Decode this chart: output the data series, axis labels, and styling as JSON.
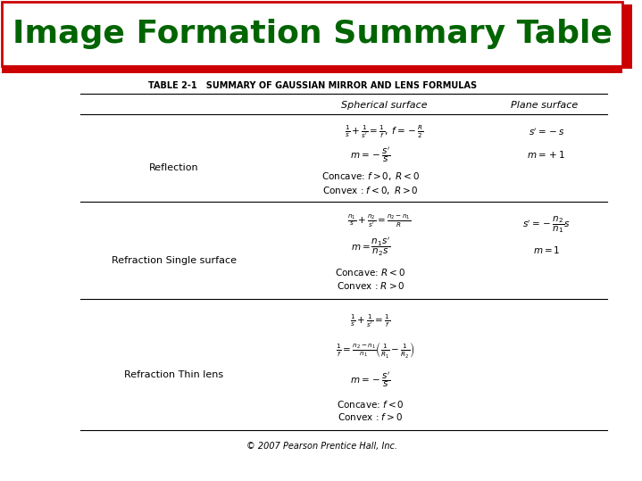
{
  "title": "Image Formation Summary Table",
  "title_color": "#006400",
  "title_bg": "#ffffff",
  "title_border_color": "#cc0000",
  "subtitle": "TABLE 2-1   SUMMARY OF GAUSSIAN MIRROR AND LENS FORMULAS",
  "col_header_spherical": "Spherical surface",
  "col_header_plane": "Plane surface",
  "footer": "© 2007 Pearson Prentice Hall, Inc.",
  "bg_color": "#ffffff",
  "text_color": "#000000",
  "title_fontsize": 26,
  "subtitle_fontsize": 7,
  "header_fontsize": 8,
  "label_fontsize": 8,
  "formula_fontsize": 7.5,
  "text_fontsize": 7.5,
  "footer_fontsize": 7
}
